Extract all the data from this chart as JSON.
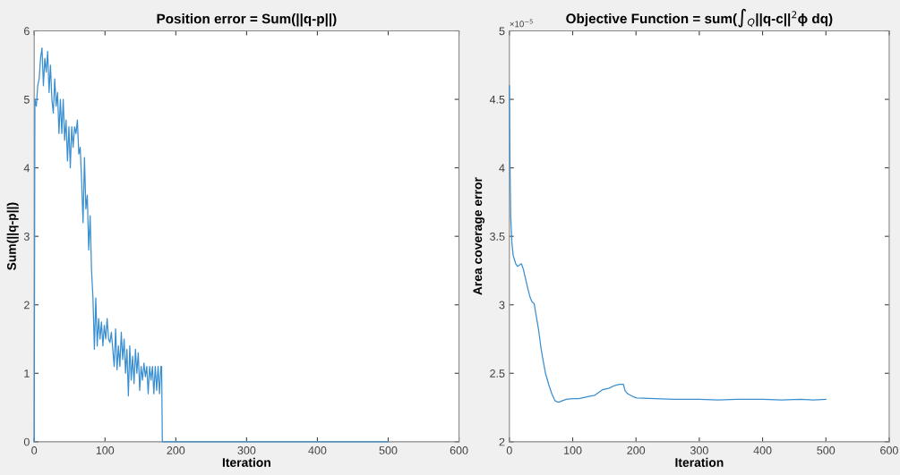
{
  "chart_data": [
    {
      "type": "line",
      "title": "Position error = Sum(||q-p||)",
      "xlabel": "Iteration",
      "ylabel": "Sum(||q-p||)",
      "xlim": [
        0,
        600
      ],
      "xticks": [
        0,
        100,
        200,
        300,
        400,
        500,
        600
      ],
      "ylim": [
        0,
        6
      ],
      "yticks": [
        0,
        1,
        2,
        3,
        4,
        5,
        6
      ],
      "grid": false,
      "legend": false,
      "series": [
        {
          "color": "#3a8fd0",
          "x": [
            0,
            1,
            3,
            5,
            7,
            9,
            11,
            13,
            15,
            17,
            19,
            21,
            23,
            25,
            27,
            29,
            31,
            33,
            35,
            37,
            39,
            41,
            43,
            45,
            47,
            49,
            51,
            53,
            55,
            57,
            59,
            61,
            63,
            65,
            67,
            69,
            71,
            73,
            75,
            77,
            79,
            81,
            83,
            85,
            87,
            89,
            91,
            93,
            95,
            97,
            99,
            101,
            103,
            105,
            107,
            109,
            111,
            113,
            115,
            117,
            119,
            121,
            123,
            125,
            127,
            129,
            131,
            133,
            135,
            137,
            139,
            141,
            143,
            145,
            147,
            149,
            151,
            153,
            155,
            157,
            159,
            161,
            163,
            165,
            167,
            169,
            171,
            173,
            175,
            177,
            179,
            180,
            181,
            500
          ],
          "values": [
            0,
            5.0,
            4.9,
            5.2,
            5.3,
            5.6,
            5.75,
            5.2,
            5.6,
            5.4,
            5.7,
            5.1,
            5.5,
            5.0,
            4.8,
            5.3,
            4.9,
            5.1,
            4.5,
            5.0,
            4.5,
            5.0,
            4.4,
            4.7,
            4.1,
            4.6,
            4.0,
            4.6,
            4.3,
            4.6,
            4.5,
            4.7,
            4.2,
            4.3,
            3.8,
            3.2,
            4.15,
            3.4,
            3.6,
            2.8,
            3.3,
            2.5,
            2.1,
            1.35,
            2.1,
            1.4,
            1.8,
            1.5,
            1.75,
            1.4,
            1.7,
            1.5,
            1.8,
            1.5,
            1.45,
            1.6,
            1.35,
            1.1,
            1.65,
            1.05,
            1.4,
            1.1,
            1.6,
            1.2,
            1.5,
            1.0,
            1.35,
            0.67,
            1.4,
            0.9,
            1.25,
            0.85,
            1.35,
            1.0,
            1.3,
            0.75,
            1.1,
            0.9,
            1.15,
            0.95,
            1.1,
            0.7,
            1.1,
            0.9,
            1.1,
            0.7,
            1.1,
            0.75,
            1.1,
            0.7,
            1.1,
            1.1,
            0,
            0
          ]
        }
      ]
    },
    {
      "type": "line",
      "title": "Objective Function = sum(∫$_{Q}$||q-c||$^{2}$ϕ dq)",
      "xlabel": "Iteration",
      "ylabel": "Area coverage error",
      "xlim": [
        0,
        600
      ],
      "xticks": [
        0,
        100,
        200,
        300,
        400,
        500,
        600
      ],
      "ylim": [
        2,
        5
      ],
      "yticks": [
        2,
        2.5,
        3,
        3.5,
        4,
        4.5,
        5
      ],
      "grid": false,
      "legend": false,
      "annotations": [
        "×10$^{−5}$"
      ],
      "series": [
        {
          "color": "#3a8fd0",
          "x": [
            0,
            1,
            2,
            4,
            6,
            8,
            10,
            13,
            16,
            19,
            22,
            25,
            29,
            33,
            36,
            39,
            42,
            46,
            50,
            53,
            57,
            62,
            67,
            72,
            76,
            79,
            84,
            90,
            100,
            110,
            124,
            135,
            147,
            157,
            166,
            174,
            180,
            183,
            187,
            195,
            201,
            230,
            260,
            300,
            330,
            360,
            400,
            430,
            460,
            480,
            500
          ],
          "values": [
            4.6,
            4.0,
            3.65,
            3.45,
            3.36,
            3.33,
            3.3,
            3.28,
            3.29,
            3.3,
            3.26,
            3.2,
            3.12,
            3.05,
            3.02,
            3.01,
            2.93,
            2.82,
            2.68,
            2.6,
            2.5,
            2.42,
            2.35,
            2.3,
            2.29,
            2.29,
            2.3,
            2.31,
            2.315,
            2.315,
            2.33,
            2.34,
            2.38,
            2.39,
            2.41,
            2.42,
            2.42,
            2.37,
            2.35,
            2.33,
            2.32,
            2.315,
            2.31,
            2.31,
            2.305,
            2.31,
            2.31,
            2.305,
            2.31,
            2.305,
            2.31
          ]
        }
      ]
    }
  ]
}
